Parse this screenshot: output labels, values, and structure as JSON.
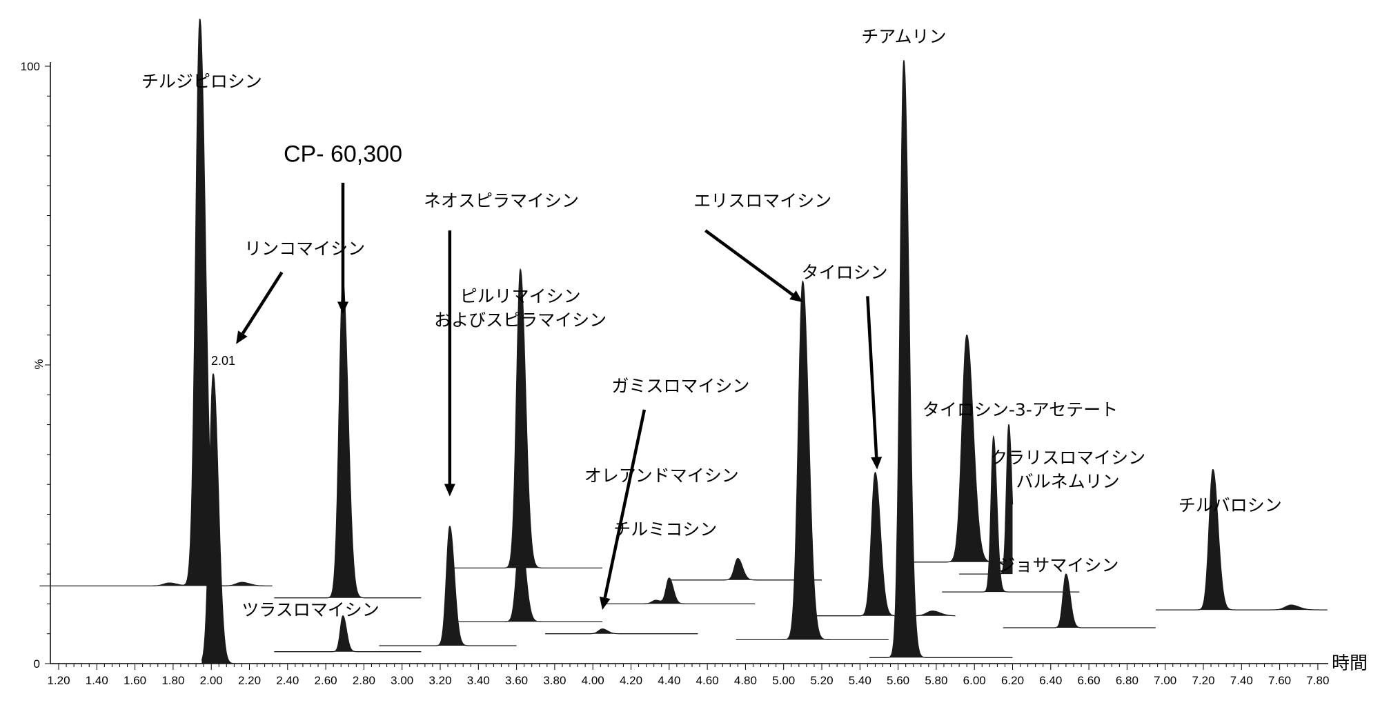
{
  "chart_data": {
    "type": "line",
    "subtype": "stacked chromatogram traces (filled peaks)",
    "xlabel": "時間",
    "ylabel": "%",
    "xlim": [
      1.1,
      7.85
    ],
    "ylim": [
      0,
      100
    ],
    "x_ticks": [
      "1.20",
      "1.40",
      "1.60",
      "1.80",
      "2.00",
      "2.20",
      "2.40",
      "2.60",
      "2.80",
      "3.00",
      "3.20",
      "3.40",
      "3.60",
      "3.80",
      "4.00",
      "4.20",
      "4.40",
      "4.60",
      "4.80",
      "5.00",
      "5.20",
      "5.40",
      "5.60",
      "5.80",
      "6.00",
      "6.20",
      "6.40",
      "6.60",
      "6.80",
      "7.00",
      "7.20",
      "7.40",
      "7.60",
      "7.80"
    ],
    "y_ticks": [
      "0",
      "%",
      "100"
    ],
    "peak_annotation": "2.01",
    "traces": [
      {
        "x_start": 1.1,
        "x_end": 2.32,
        "baseline": 13,
        "peaks": [
          {
            "rt": 1.94,
            "height": 95,
            "width": 0.022
          },
          {
            "rt": 1.78,
            "height": 0.5,
            "width": 0.03
          },
          {
            "rt": 2.16,
            "height": 0.6,
            "width": 0.03
          }
        ]
      },
      {
        "x_start": 1.95,
        "x_end": 2.3,
        "baseline": 0,
        "peaks": [
          {
            "rt": 2.01,
            "height": 48.5,
            "width": 0.02
          }
        ]
      },
      {
        "x_start": 2.33,
        "x_end": 3.1,
        "baseline": 11,
        "peaks": [
          {
            "rt": 2.69,
            "height": 53,
            "width": 0.02
          }
        ]
      },
      {
        "x_start": 2.33,
        "x_end": 3.1,
        "baseline": 2,
        "peaks": [
          {
            "rt": 2.69,
            "height": 6,
            "width": 0.014
          }
        ]
      },
      {
        "x_start": 2.88,
        "x_end": 3.6,
        "baseline": 3,
        "peaks": [
          {
            "rt": 3.25,
            "height": 20,
            "width": 0.018
          }
        ]
      },
      {
        "x_start": 3.25,
        "x_end": 4.05,
        "baseline": 16,
        "peaks": [
          {
            "rt": 3.62,
            "height": 50,
            "width": 0.02
          }
        ]
      },
      {
        "x_start": 3.25,
        "x_end": 4.05,
        "baseline": 7,
        "peaks": [
          {
            "rt": 3.62,
            "height": 15,
            "width": 0.02
          }
        ]
      },
      {
        "x_start": 3.75,
        "x_end": 4.55,
        "baseline": 5,
        "peaks": [
          {
            "rt": 4.05,
            "height": 0.8,
            "width": 0.02
          }
        ]
      },
      {
        "x_start": 4.05,
        "x_end": 4.85,
        "baseline": 10,
        "peaks": [
          {
            "rt": 4.4,
            "height": 4.3,
            "width": 0.016
          },
          {
            "rt": 4.33,
            "height": 0.6,
            "width": 0.02
          }
        ]
      },
      {
        "x_start": 4.4,
        "x_end": 5.2,
        "baseline": 14,
        "peaks": [
          {
            "rt": 4.76,
            "height": 3.6,
            "width": 0.018
          }
        ]
      },
      {
        "x_start": 4.75,
        "x_end": 5.55,
        "baseline": 4,
        "peaks": [
          {
            "rt": 5.1,
            "height": 60,
            "width": 0.023
          }
        ]
      },
      {
        "x_start": 5.1,
        "x_end": 5.9,
        "baseline": 8,
        "peaks": [
          {
            "rt": 5.48,
            "height": 24,
            "width": 0.02
          },
          {
            "rt": 5.78,
            "height": 0.8,
            "width": 0.03
          }
        ]
      },
      {
        "x_start": 5.45,
        "x_end": 6.2,
        "baseline": 1,
        "peaks": [
          {
            "rt": 5.63,
            "height": 100,
            "width": 0.02
          }
        ]
      },
      {
        "x_start": 5.6,
        "x_end": 6.2,
        "baseline": 17,
        "peaks": [
          {
            "rt": 5.96,
            "height": 38,
            "width": 0.025
          }
        ]
      },
      {
        "x_start": 5.83,
        "x_end": 6.55,
        "baseline": 12,
        "peaks": [
          {
            "rt": 6.1,
            "height": 26,
            "width": 0.013
          }
        ]
      },
      {
        "x_start": 5.92,
        "x_end": 6.2,
        "baseline": 15,
        "peaks": [
          {
            "rt": 6.18,
            "height": 25,
            "width": 0.012
          }
        ]
      },
      {
        "x_start": 6.15,
        "x_end": 6.95,
        "baseline": 6,
        "peaks": [
          {
            "rt": 6.48,
            "height": 9,
            "width": 0.016
          }
        ]
      },
      {
        "x_start": 6.95,
        "x_end": 7.85,
        "baseline": 9,
        "peaks": [
          {
            "rt": 7.25,
            "height": 23.5,
            "width": 0.02
          },
          {
            "rt": 7.66,
            "height": 0.8,
            "width": 0.03
          }
        ]
      }
    ],
    "annotations": [
      {
        "text": "チルジピロシン",
        "x": 1.95,
        "y": 96.5
      },
      {
        "text": "CP- 60,300",
        "x": 2.69,
        "y": 84
      },
      {
        "text": "リンコマイシン",
        "x": 2.49,
        "y": 68.5
      },
      {
        "text": "ネオスピラマイシン",
        "x": 3.52,
        "y": 76.5
      },
      {
        "text": "ピルリマイシン",
        "x": 3.62,
        "y": 60.5
      },
      {
        "text": "およびスピラマイシン",
        "x": 3.62,
        "y": 56.5
      },
      {
        "text": "エリスロマイシン",
        "x": 4.89,
        "y": 76.5
      },
      {
        "text": "タイロシン",
        "x": 5.32,
        "y": 64.5
      },
      {
        "text": "チアムリン",
        "x": 5.63,
        "y": 104
      },
      {
        "text": "ガミスロマイシン",
        "x": 4.46,
        "y": 45.5
      },
      {
        "text": "オレアンドマイシン",
        "x": 4.36,
        "y": 30.5
      },
      {
        "text": "チルミコシン",
        "x": 4.38,
        "y": 21.5
      },
      {
        "text": "タイロシン-3-アセテート",
        "x": 6.24,
        "y": 41.5
      },
      {
        "text": "クラリスロマイシン",
        "x": 6.49,
        "y": 33.5
      },
      {
        "text": "バルネムリン",
        "x": 6.49,
        "y": 29.5
      },
      {
        "text": "ジョサマイシン",
        "x": 6.44,
        "y": 15.5
      },
      {
        "text": "チルバロシン",
        "x": 7.34,
        "y": 25.5
      },
      {
        "text": "ツラスロマイシン",
        "x": 2.52,
        "y": 8.0
      }
    ],
    "arrows": [
      {
        "from": [
          2.37,
          65.5
        ],
        "to": [
          2.13,
          53.5
        ]
      },
      {
        "from": [
          2.69,
          80.5
        ],
        "to": [
          2.69,
          58.5
        ]
      },
      {
        "from": [
          3.25,
          72.5
        ],
        "to": [
          3.25,
          28.0
        ]
      },
      {
        "from": [
          4.59,
          72.5
        ],
        "to": [
          5.1,
          60.5
        ]
      },
      {
        "from": [
          5.44,
          61.5
        ],
        "to": [
          5.49,
          32.5
        ]
      },
      {
        "from": [
          4.27,
          42.5
        ],
        "to": [
          4.05,
          9.0
        ]
      }
    ]
  }
}
